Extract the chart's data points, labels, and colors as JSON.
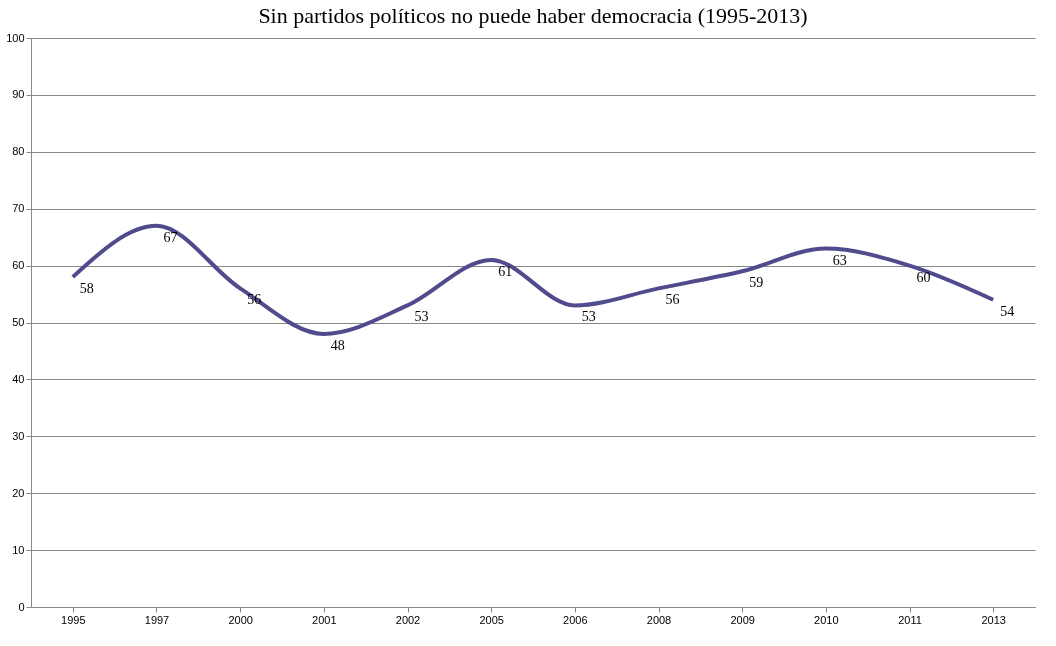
{
  "chart_data": {
    "type": "line",
    "title": "Sin partidos políticos no puede haber democracia (1995-2013)",
    "categories": [
      "1995",
      "1997",
      "2000",
      "2001",
      "2002",
      "2005",
      "2006",
      "2008",
      "2009",
      "2010",
      "2011",
      "2013"
    ],
    "series": [
      {
        "color": "#504b8c",
        "values": [
          58,
          67,
          56,
          48,
          53,
          61,
          53,
          56,
          59,
          63,
          60,
          54
        ]
      }
    ],
    "ylim": [
      0,
      100
    ],
    "yticks": [
      0,
      10,
      20,
      30,
      40,
      50,
      60,
      70,
      80,
      90,
      100
    ],
    "grid": "y",
    "data_labels": true,
    "marker": "none",
    "line_style": "solid"
  }
}
